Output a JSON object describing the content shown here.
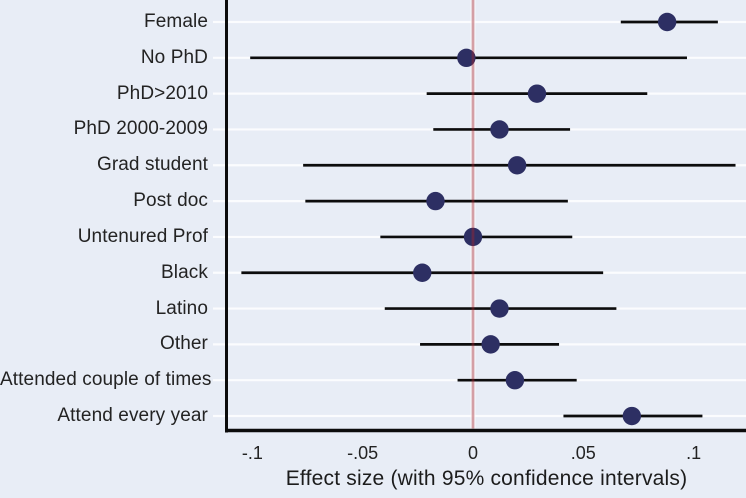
{
  "colors": {
    "background": "#e8edf6",
    "gridline": "#fbfcfe",
    "axis": "#0c0c0c",
    "ci_line": "#0c0c0c",
    "marker": "#2d2f63",
    "reference_line": "rgba(165,35,45,0.42)",
    "reference_band": "rgba(255,255,255,0.65)",
    "text": "#232323"
  },
  "chart_data": {
    "type": "scatter",
    "subtype": "forest-plot-with-95pct-confidence-intervals",
    "title": "",
    "xlabel": "Effect size (with 95% confidence intervals)",
    "ylabel": "",
    "xlim": [
      -0.1115,
      0.1238
    ],
    "grid": "white horizontal gridline per category",
    "legend": "none",
    "reference_line_x": 0,
    "x_ticks": [
      {
        "value": -0.1,
        "label": "-.1"
      },
      {
        "value": -0.05,
        "label": "-.05"
      },
      {
        "value": 0,
        "label": "0"
      },
      {
        "value": 0.05,
        "label": ".05"
      },
      {
        "value": 0.1,
        "label": ".1"
      }
    ],
    "points": [
      {
        "label": "Female",
        "estimate": 0.088,
        "ci_low": 0.067,
        "ci_high": 0.111
      },
      {
        "label": "No PhD",
        "estimate": -0.003,
        "ci_low": -0.101,
        "ci_high": 0.097
      },
      {
        "label": "PhD>2010",
        "estimate": 0.029,
        "ci_low": -0.021,
        "ci_high": 0.079
      },
      {
        "label": "PhD 2000-2009",
        "estimate": 0.012,
        "ci_low": -0.018,
        "ci_high": 0.044
      },
      {
        "label": "Grad student",
        "estimate": 0.02,
        "ci_low": -0.077,
        "ci_high": 0.119
      },
      {
        "label": "Post doc",
        "estimate": -0.017,
        "ci_low": -0.076,
        "ci_high": 0.043
      },
      {
        "label": "Untenured Prof",
        "estimate": 0.0,
        "ci_low": -0.042,
        "ci_high": 0.045
      },
      {
        "label": "Black",
        "estimate": -0.023,
        "ci_low": -0.105,
        "ci_high": 0.059
      },
      {
        "label": "Latino",
        "estimate": 0.012,
        "ci_low": -0.04,
        "ci_high": 0.065
      },
      {
        "label": "Other",
        "estimate": 0.008,
        "ci_low": -0.024,
        "ci_high": 0.039
      },
      {
        "label": "Attended couple of times",
        "estimate": 0.019,
        "ci_low": -0.007,
        "ci_high": 0.047
      },
      {
        "label": "Attend every year",
        "estimate": 0.072,
        "ci_low": 0.041,
        "ci_high": 0.104
      }
    ]
  }
}
